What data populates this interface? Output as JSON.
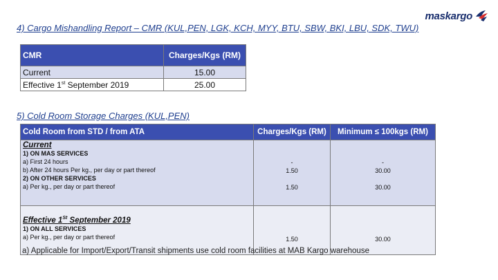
{
  "logo": {
    "text": "maskargo"
  },
  "section4": {
    "heading": "4) Cargo Mishandling Report – CMR (KUL,PEN, LGK, KCH, MYY, BTU, SBW, BKI, LBU, SDK, TWU)",
    "table": {
      "headers": [
        "CMR",
        "Charges/Kgs (RM)"
      ],
      "rows": [
        {
          "label": "Current",
          "value": "15.00"
        },
        {
          "label_pre": "Effective 1",
          "label_sup": "st",
          "label_post": " September 2019",
          "value": "25.00"
        }
      ]
    }
  },
  "section5": {
    "heading": "5) Cold Room Storage Charges (KUL,PEN)",
    "table": {
      "headers": [
        "Cold Room from STD / from ATA",
        "Charges/Kgs (RM)",
        "Minimum ≤ 100kgs (RM)"
      ],
      "current": {
        "title": "Current",
        "lines": [
          "1)    ON MAS SERVICES",
          "a)    First 24 hours",
          "b)    After 24 hours Per kg., per day or part thereof",
          "2)    ON OTHER SERVICES",
          "a)    Per kg., per day or part thereof"
        ],
        "charges": [
          "-",
          "1.50",
          "",
          "1.50"
        ],
        "minimum": [
          "-",
          "30.00",
          "",
          "30.00"
        ]
      },
      "effective": {
        "title_pre": "Effective 1",
        "title_sup": "St",
        "title_post": " September 2019",
        "lines": [
          "1)    ON ALL SERVICES",
          "a)     Per kg., per day or part thereof"
        ],
        "charge": "1.50",
        "minimum": "30.00"
      }
    }
  },
  "footnote": "a)   Applicable for Import/Export/Transit shipments use cold room facilities at MAB Kargo warehouse"
}
